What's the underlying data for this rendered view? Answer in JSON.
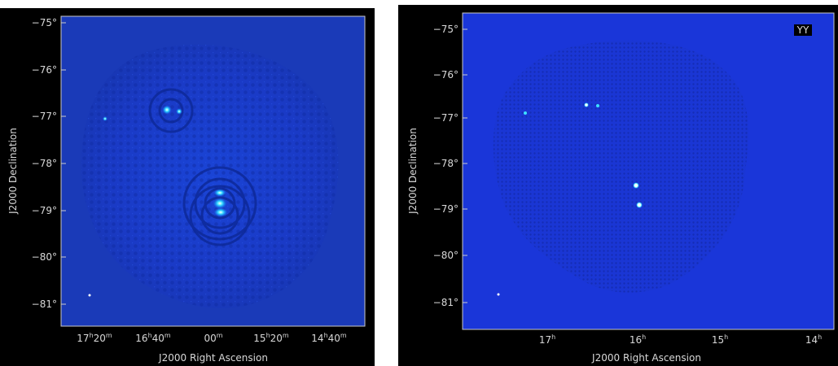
{
  "panels": [
    {
      "id": "left",
      "dec_ticks": [
        "−75°",
        "−76°",
        "−77°",
        "−78°",
        "−79°",
        "−80°",
        "−81°"
      ],
      "ra_ticks": [
        {
          "h": "17",
          "hs": "h",
          "m": "20",
          "ms": "m"
        },
        {
          "h": "16",
          "hs": "h",
          "m": "40",
          "ms": "m"
        },
        {
          "h": "",
          "hs": "",
          "m": "00",
          "ms": "m"
        },
        {
          "h": "15",
          "hs": "h",
          "m": "20",
          "ms": "m"
        },
        {
          "h": "14",
          "hs": "h",
          "m": "40",
          "ms": "m"
        }
      ],
      "xlabel": "J2000 Right Ascension",
      "ylabel": "J2000 Declination",
      "badge": ""
    },
    {
      "id": "right",
      "dec_ticks": [
        "−75°",
        "−76°",
        "−77°",
        "−78°",
        "−79°",
        "−80°",
        "−81°"
      ],
      "ra_ticks": [
        {
          "h": "17",
          "hs": "h",
          "m": "",
          "ms": ""
        },
        {
          "h": "16",
          "hs": "h",
          "m": "",
          "ms": ""
        },
        {
          "h": "15",
          "hs": "h",
          "m": "",
          "ms": ""
        },
        {
          "h": "14",
          "hs": "h",
          "m": "",
          "ms": ""
        }
      ],
      "xlabel": "J2000 Right Ascension",
      "ylabel": "J2000 Declination",
      "badge": "YY"
    }
  ],
  "colors": {
    "background_field": "#1a3fd0",
    "right_field": "#1a36d9",
    "axis_text": "#d8d8d8",
    "source_core": "#ffffff",
    "source_ring": "#3de0ff"
  }
}
